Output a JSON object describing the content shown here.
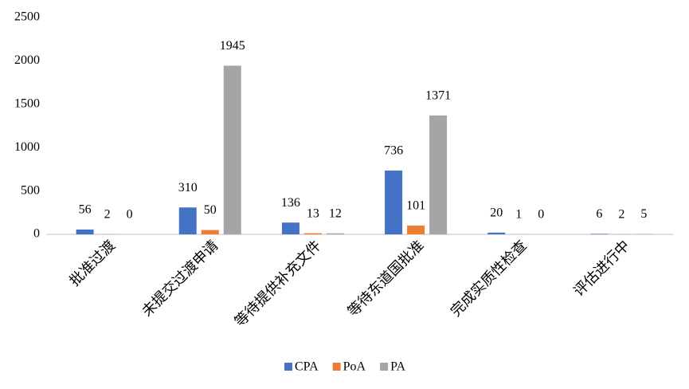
{
  "chart_data": {
    "type": "bar",
    "categories": [
      "批准过渡",
      "未提交过渡申请",
      "等待提供补充文件",
      "等待东道国批准",
      "完成实质性检查",
      "评估进行中"
    ],
    "series": [
      {
        "name": "CPA",
        "color": "#4472c4",
        "values": [
          56,
          310,
          136,
          736,
          20,
          6
        ]
      },
      {
        "name": "PoA",
        "color": "#ed7d31",
        "values": [
          2,
          50,
          13,
          101,
          1,
          2
        ]
      },
      {
        "name": "PA",
        "color": "#a5a5a5",
        "values": [
          0,
          1945,
          12,
          1371,
          0,
          5
        ]
      }
    ],
    "ylim": [
      0,
      2500
    ],
    "yticks": [
      0,
      500,
      1000,
      1500,
      2000,
      2500
    ],
    "grid": false,
    "legend": "bottom"
  }
}
